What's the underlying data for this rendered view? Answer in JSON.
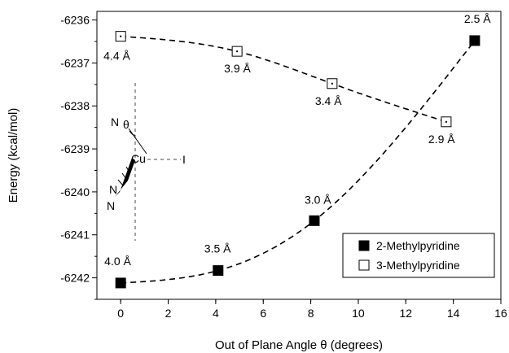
{
  "chart_data": {
    "type": "scatter",
    "xlabel": "Out of Plane Angle θ (degrees)",
    "ylabel": "Energy (kcal/mol)",
    "xlim": [
      -1,
      16
    ],
    "ylim": [
      -6242.5,
      -6235.8
    ],
    "xticks": [
      0,
      2,
      4,
      6,
      8,
      10,
      12,
      14,
      16
    ],
    "yticks": [
      -6242,
      -6241,
      -6240,
      -6239,
      -6238,
      -6237,
      -6236
    ],
    "grid": false,
    "legend_position": "bottom-right",
    "series": [
      {
        "name": "2-Methylpyridine",
        "marker": "filled-square",
        "color": "#000000",
        "line": "dashed",
        "x": [
          0.0,
          4.1,
          8.15,
          14.9
        ],
        "y": [
          -6242.12,
          -6241.83,
          -6240.67,
          -6236.48
        ],
        "labels": [
          "4.0 Å",
          "3.5 Å",
          "3.0 Å",
          "2.5 Å"
        ]
      },
      {
        "name": "3-Methylpyridine",
        "marker": "open-square",
        "color": "#000000",
        "line": "dashed",
        "x": [
          0.0,
          4.9,
          8.9,
          13.7
        ],
        "y": [
          -6236.38,
          -6236.73,
          -6237.48,
          -6238.37
        ],
        "labels": [
          "4.4 Å",
          "3.9 Å",
          "3.4 Å",
          "2.9 Å"
        ]
      }
    ]
  },
  "inset": {
    "atom_n_upper": "N",
    "theta": "θ",
    "atom_cu": "Cu",
    "atom_i": "I",
    "atom_n_lower_1": "N",
    "atom_n_lower_2": "N"
  }
}
